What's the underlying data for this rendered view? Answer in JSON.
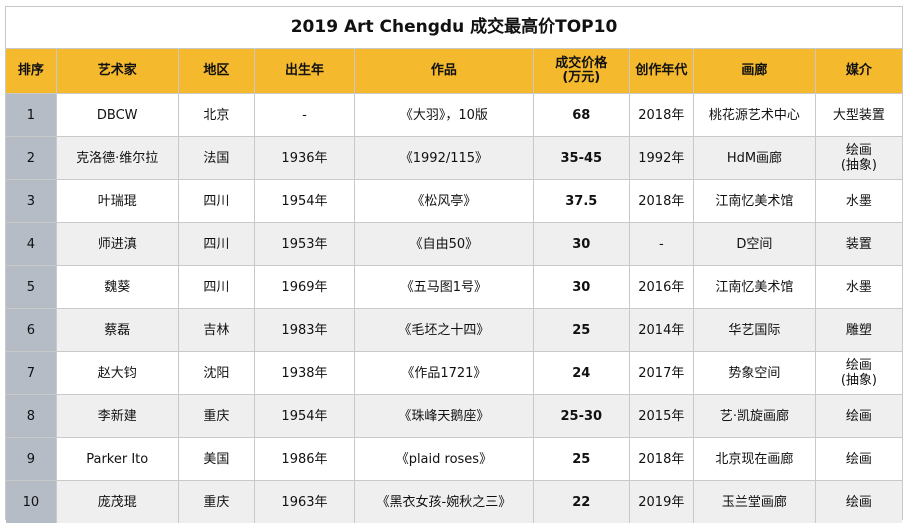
{
  "title": "2019 Art Chengdu 成交最高价TOP10",
  "headers": {
    "rank": "排序",
    "artist": "艺术家",
    "region": "地区",
    "born": "出生年",
    "work": "作品",
    "price": "成交价格\n(万元)",
    "year": "创作年代",
    "gallery": "画廊",
    "medium": "媒介"
  },
  "rows": [
    {
      "rank": "1",
      "artist": "DBCW",
      "region": "北京",
      "born": "-",
      "work": "《大羽》，10版",
      "price": "68",
      "year": "2018年",
      "gallery": "桃花源艺术中心",
      "medium": "大型装置"
    },
    {
      "rank": "2",
      "artist": "克洛德·维尔拉",
      "region": "法国",
      "born": "1936年",
      "work": "《1992/115》",
      "price": "35-45",
      "year": "1992年",
      "gallery": "HdM画廊",
      "medium": "绘画\n(抽象)"
    },
    {
      "rank": "3",
      "artist": "叶瑞琨",
      "region": "四川",
      "born": "1954年",
      "work": "《松风亭》",
      "price": "37.5",
      "year": "2018年",
      "gallery": "江南忆美术馆",
      "medium": "水墨"
    },
    {
      "rank": "4",
      "artist": "师进滇",
      "region": "四川",
      "born": "1953年",
      "work": "《自由50》",
      "price": "30",
      "year": "-",
      "gallery": "D空间",
      "medium": "装置"
    },
    {
      "rank": "5",
      "artist": "魏葵",
      "region": "四川",
      "born": "1969年",
      "work": "《五马图1号》",
      "price": "30",
      "year": "2016年",
      "gallery": "江南忆美术馆",
      "medium": "水墨"
    },
    {
      "rank": "6",
      "artist": "蔡磊",
      "region": "吉林",
      "born": "1983年",
      "work": "《毛坯之十四》",
      "price": "25",
      "year": "2014年",
      "gallery": "华艺国际",
      "medium": "雕塑"
    },
    {
      "rank": "7",
      "artist": "赵大钧",
      "region": "沈阳",
      "born": "1938年",
      "work": "《作品1721》",
      "price": "24",
      "year": "2017年",
      "gallery": "势象空间",
      "medium": "绘画\n(抽象)"
    },
    {
      "rank": "8",
      "artist": "李新建",
      "region": "重庆",
      "born": "1954年",
      "work": "《珠峰天鹅座》",
      "price": "25-30",
      "year": "2015年",
      "gallery": "艺·凯旋画廊",
      "medium": "绘画"
    },
    {
      "rank": "9",
      "artist": "Parker Ito",
      "region": "美国",
      "born": "1986年",
      "work": "《plaid roses》",
      "price": "25",
      "year": "2018年",
      "gallery": "北京现在画廊",
      "medium": "绘画"
    },
    {
      "rank": "10",
      "artist": "庞茂琨",
      "region": "重庆",
      "born": "1963年",
      "work": "《黑衣女孩-婉秋之三》",
      "price": "22",
      "year": "2019年",
      "gallery": "玉兰堂画廊",
      "medium": "绘画"
    }
  ]
}
